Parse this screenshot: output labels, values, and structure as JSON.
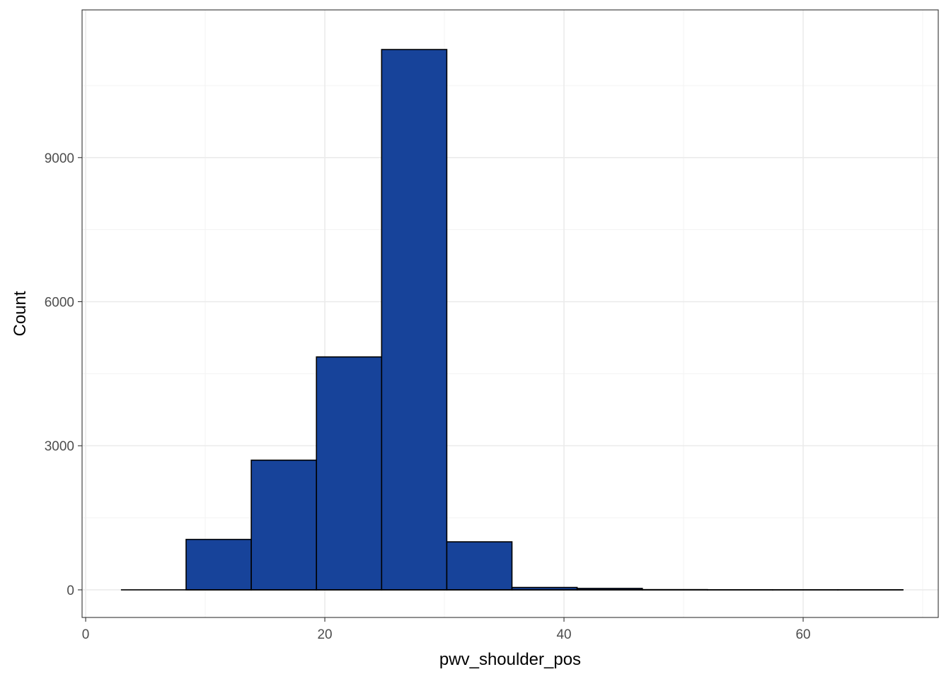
{
  "chart_data": {
    "type": "bar",
    "subtype": "histogram",
    "title": "",
    "xlabel": "pwv_shoulder_pos",
    "ylabel": "Count",
    "xlim": [
      -0.3,
      71.3
    ],
    "ylim": [
      -575,
      12075
    ],
    "x_ticks": [
      0,
      20,
      40,
      60
    ],
    "y_ticks": [
      0,
      3000,
      6000,
      9000
    ],
    "x_tick_labels": [
      "0",
      "20",
      "40",
      "60"
    ],
    "y_tick_labels": [
      "0",
      "3000",
      "6000",
      "9000"
    ],
    "bin_width": 5.45,
    "bins": [
      {
        "start": 2.95,
        "end": 8.4,
        "count": 0
      },
      {
        "start": 8.4,
        "end": 13.85,
        "count": 1050
      },
      {
        "start": 13.85,
        "end": 19.3,
        "count": 2700
      },
      {
        "start": 19.3,
        "end": 24.75,
        "count": 4850
      },
      {
        "start": 24.75,
        "end": 30.2,
        "count": 11250
      },
      {
        "start": 30.2,
        "end": 35.65,
        "count": 1000
      },
      {
        "start": 35.65,
        "end": 41.1,
        "count": 50
      },
      {
        "start": 41.1,
        "end": 46.55,
        "count": 30
      },
      {
        "start": 46.55,
        "end": 52.0,
        "count": 5
      },
      {
        "start": 52.0,
        "end": 57.45,
        "count": 2
      },
      {
        "start": 57.45,
        "end": 62.9,
        "count": 1
      },
      {
        "start": 62.9,
        "end": 68.35,
        "count": 1
      }
    ],
    "grid": true,
    "legend": "none",
    "colors": {
      "bar_fill": "#17439a",
      "bar_stroke": "#000000",
      "grid_major": "#ebebeb",
      "grid_minor": "#f3f3f3",
      "panel_border": "#333333",
      "tick_label": "#4d4d4d"
    }
  }
}
